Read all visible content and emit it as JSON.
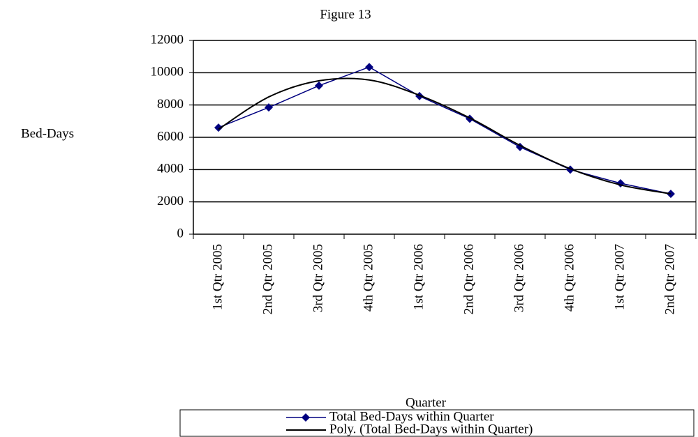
{
  "chart_data": {
    "type": "line",
    "title": "Figure 13",
    "x_label": "Quarter",
    "y_label": "Bed-Days",
    "categories": [
      "1st Qtr 2005",
      "2nd Qtr 2005",
      "3rd Qtr 2005",
      "4th Qtr 2005",
      "1st Qtr 2006",
      "2nd Qtr 2006",
      "3rd Qtr 2006",
      "4th Qtr 2006",
      "1st Qtr 2007",
      "2nd Qtr 2007"
    ],
    "series": [
      {
        "name": "Total Bed-Days within Quarter",
        "color": "#000080",
        "marker": "diamond",
        "values": [
          6600,
          7850,
          9200,
          10350,
          8550,
          7150,
          5400,
          4000,
          3150,
          2500
        ]
      },
      {
        "name": "Poly. (Total Bed-Days within Quarter)",
        "color": "#000000",
        "smooth": true,
        "values": [
          6500,
          8500,
          9500,
          9550,
          8600,
          7200,
          5500,
          4050,
          3050,
          2500
        ]
      }
    ],
    "ylim": [
      0,
      12000
    ],
    "yticks": [
      0,
      2000,
      4000,
      6000,
      8000,
      10000,
      12000
    ],
    "grid": true,
    "legend": "bottom"
  }
}
